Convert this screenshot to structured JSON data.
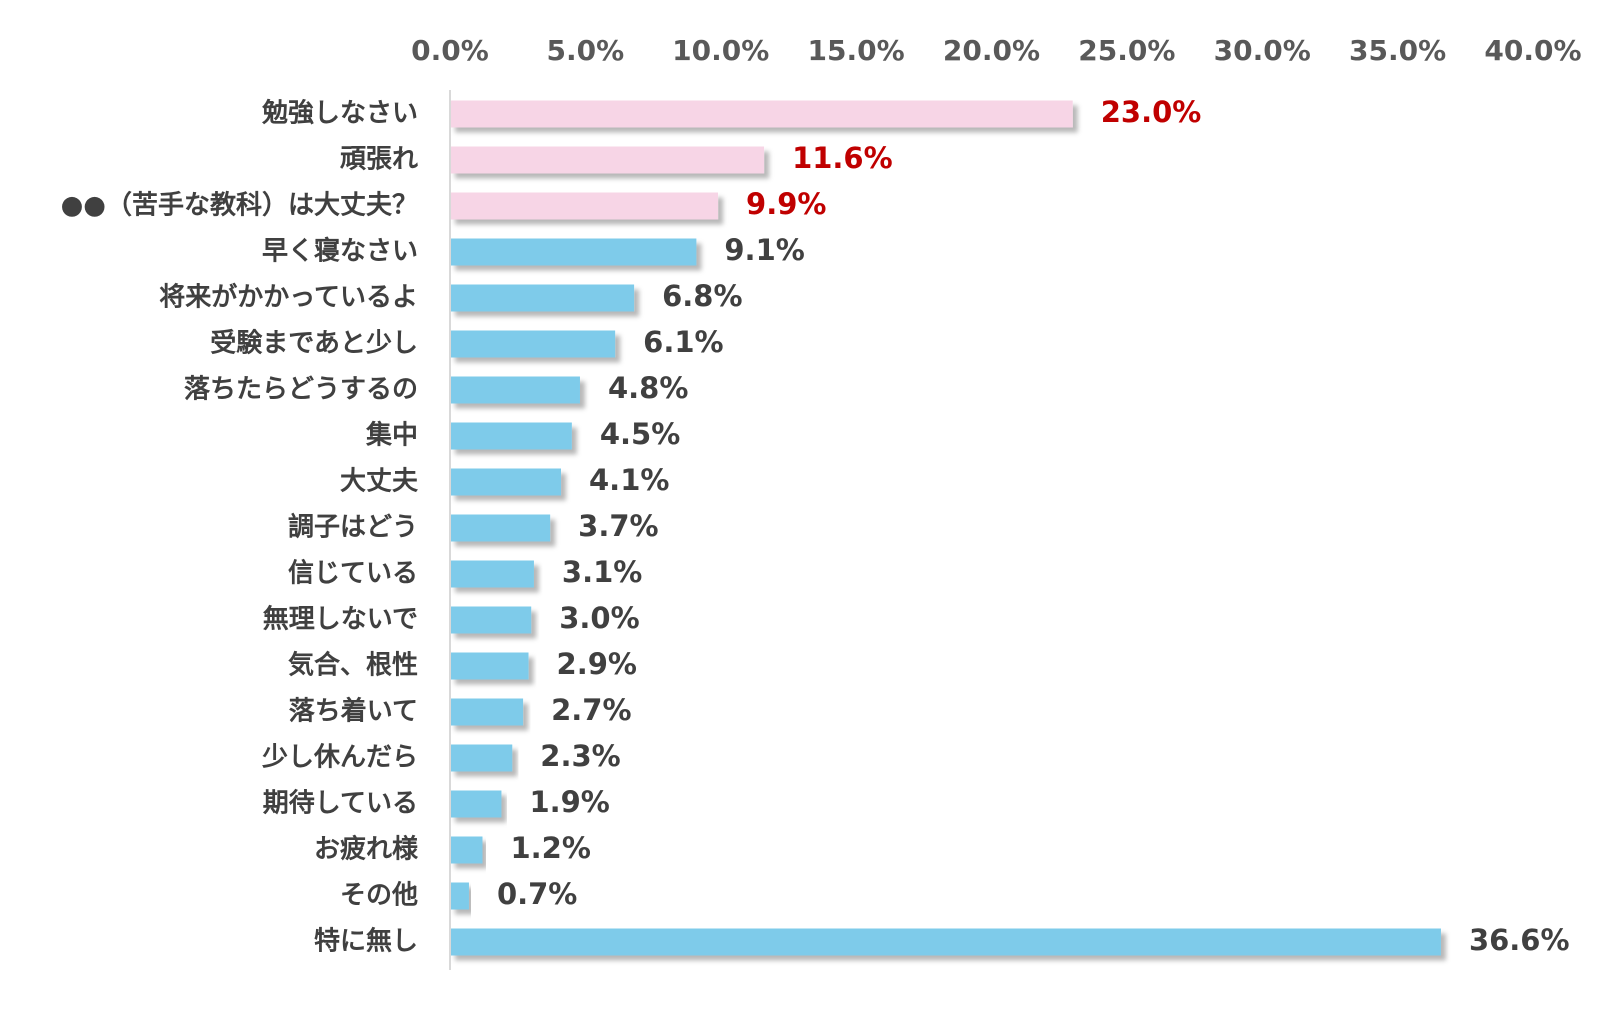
{
  "chart_data": {
    "type": "bar",
    "orientation": "horizontal",
    "categories": [
      "勉強しなさい",
      "頑張れ",
      "●●（苦手な教科）は大丈夫？",
      "早く寝なさい",
      "将来がかかっているよ",
      "受験まであと少し",
      "落ちたらどうするの",
      "集中",
      "大丈夫",
      "調子はどう",
      "信じている",
      "無理しないで",
      "気合、根性",
      "落ち着いて",
      "少し休んだら",
      "期待している",
      "お疲れ様",
      "その他",
      "特に無し"
    ],
    "values": [
      23.0,
      11.6,
      9.9,
      9.1,
      6.8,
      6.1,
      4.8,
      4.5,
      4.1,
      3.7,
      3.1,
      3.0,
      2.9,
      2.7,
      2.3,
      1.9,
      1.2,
      0.7,
      36.6
    ],
    "value_labels": [
      "23.0%",
      "11.6%",
      "9.9%",
      "9.1%",
      "6.8%",
      "6.1%",
      "4.8%",
      "4.5%",
      "4.1%",
      "3.7%",
      "3.1%",
      "3.0%",
      "2.9%",
      "2.7%",
      "2.3%",
      "1.9%",
      "1.2%",
      "0.7%",
      "36.6%"
    ],
    "highlighted_count": 3,
    "xlim": [
      0,
      40
    ],
    "ticks": [
      0,
      5,
      10,
      15,
      20,
      25,
      30,
      35,
      40
    ],
    "tick_labels": [
      "0.0%",
      "5.0%",
      "10.0%",
      "15.0%",
      "20.0%",
      "25.0%",
      "30.0%",
      "35.0%",
      "40.0%"
    ],
    "x_axis_position": "top",
    "grid": false,
    "legend": false,
    "title": "",
    "xlabel": "",
    "ylabel": "",
    "colors": {
      "highlight_bar": "#F7D5E6",
      "normal_bar": "#7ECBEA",
      "highlight_label": "#C00000",
      "normal_label": "#404040",
      "category_label": "#404040",
      "tick_label": "#595959",
      "axis_line": "#D9D9D9"
    }
  }
}
